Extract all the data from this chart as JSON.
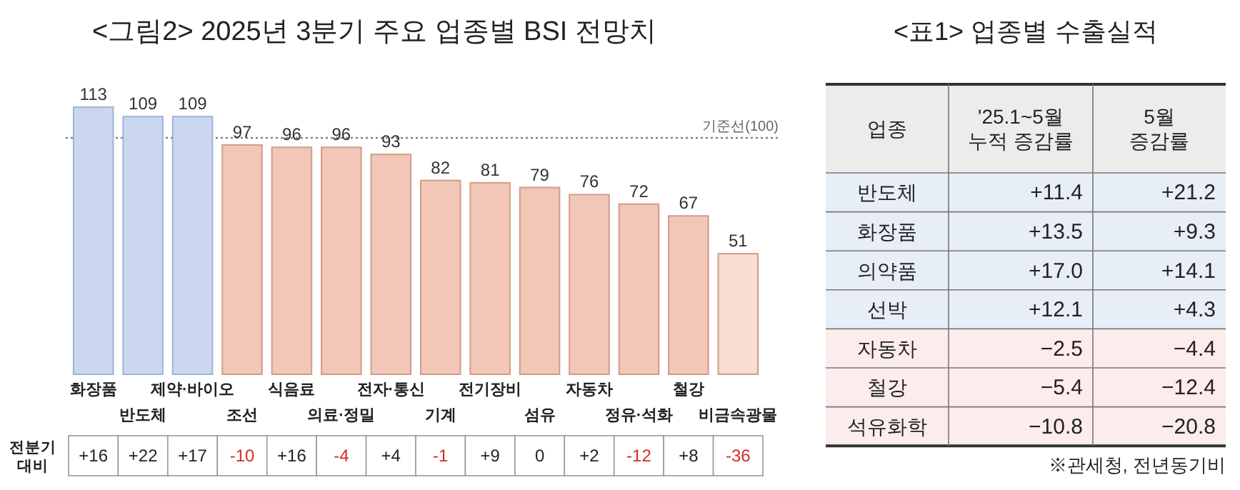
{
  "chart_data": [
    {
      "type": "bar",
      "title": "<그림2> 2025년 3분기 주요 업종별 BSI 전망치",
      "categories": [
        "화장품",
        "반도체",
        "제약·바이오",
        "조선",
        "식음료",
        "의료·정밀",
        "전자·통신",
        "기계",
        "전기장비",
        "섬유",
        "자동차",
        "정유·석화",
        "철강",
        "비금속광물"
      ],
      "values": [
        113,
        109,
        109,
        97,
        96,
        96,
        93,
        82,
        81,
        79,
        76,
        72,
        67,
        51
      ],
      "colors": [
        "#cbd7ee",
        "#cbd7ee",
        "#cbd7ee",
        "#f2c7b8",
        "#f2c7b8",
        "#f2c7b8",
        "#f2c7b8",
        "#f2c7b8",
        "#f2c7b8",
        "#f2c7b8",
        "#f2c7b8",
        "#f2c7b8",
        "#f2c7b8",
        "#f8ddd0"
      ],
      "data_labels": true,
      "ref_lines": [
        {
          "axis": "y",
          "value": 100,
          "label": "기준선(100)",
          "color": "#808080",
          "line_style": "dotted"
        }
      ]
    },
    {
      "type": "other",
      "categories": [
        null,
        null,
        null,
        null,
        null,
        null,
        null,
        null,
        null,
        null,
        null,
        null,
        null,
        null
      ],
      "y_categories": [
        "전분기\n대비"
      ],
      "cell_labels": [
        [
          "+16",
          "+22",
          "+17",
          "-10",
          "+16",
          "-4",
          "+4",
          "-1",
          "+9",
          "0",
          "+2",
          "-12",
          "+8",
          "-36"
        ]
      ]
    },
    {
      "type": "heatmap",
      "title": "<표1> 업종별 수출실적",
      "ylabel": "업종",
      "categories": [
        "'25.1~5월\n누적 증감률",
        "5월\n증감률"
      ],
      "y_categories": [
        "반도체",
        "화장품",
        "의약품",
        "선박",
        "자동차",
        "철강",
        "석유화학"
      ],
      "cells": [
        [
          11.4,
          21.2
        ],
        [
          13.5,
          9.3
        ],
        [
          17.0,
          14.1
        ],
        [
          12.1,
          4.3
        ],
        [
          -2.5,
          -4.4
        ],
        [
          -5.4,
          -12.4
        ],
        [
          -10.8,
          -20.8
        ]
      ],
      "cell_labels": [
        [
          "+11.4",
          "+21.2"
        ],
        [
          "+13.5",
          "+9.3"
        ],
        [
          "+17.0",
          "+14.1"
        ],
        [
          "+12.1",
          "+4.3"
        ],
        [
          "−2.5",
          "−4.4"
        ],
        [
          "−5.4",
          "−12.4"
        ],
        [
          "−10.8",
          "−20.8"
        ]
      ],
      "annotations": [
        "※관세청, 전년동기비"
      ]
    }
  ]
}
